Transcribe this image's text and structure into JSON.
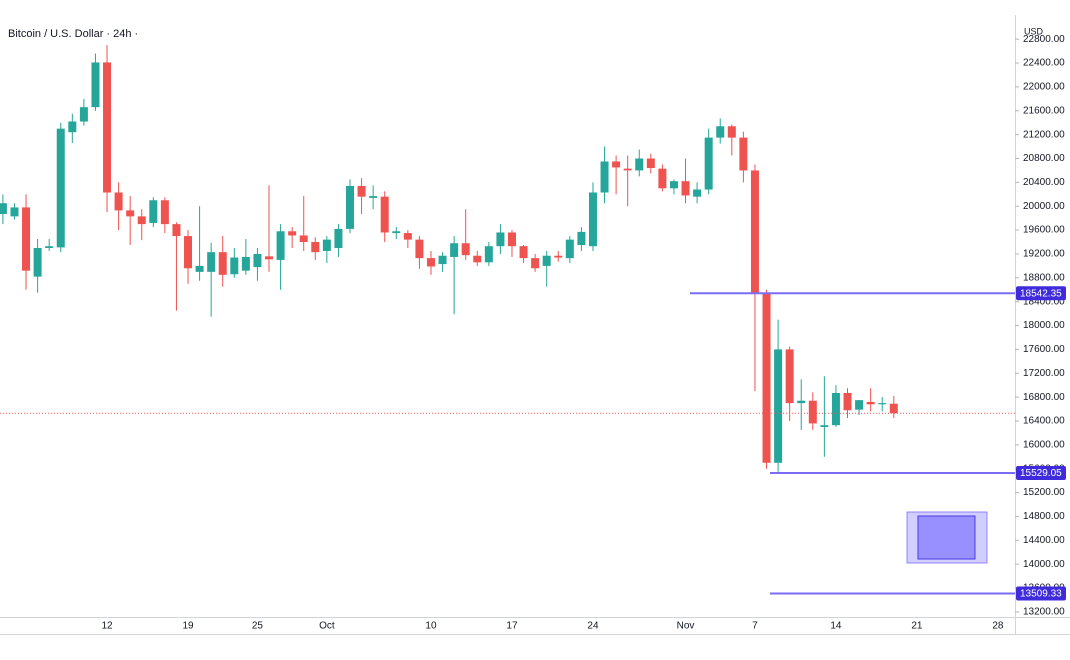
{
  "chart_data": {
    "type": "candlestick",
    "title": "Bitcoin / U.S. Dollar · 24h ·",
    "currency": "USD",
    "categories": [
      null,
      null,
      null,
      null,
      null,
      null,
      null,
      null,
      null,
      "12",
      null,
      null,
      null,
      null,
      null,
      null,
      "19",
      null,
      null,
      null,
      null,
      null,
      "25",
      null,
      null,
      null,
      null,
      null,
      "Oct",
      null,
      null,
      null,
      null,
      null,
      null,
      null,
      null,
      "10",
      null,
      null,
      null,
      null,
      null,
      null,
      "17",
      null,
      null,
      null,
      null,
      null,
      null,
      "24",
      null,
      null,
      null,
      null,
      null,
      null,
      null,
      "Nov",
      null,
      null,
      null,
      null,
      null,
      "7",
      null,
      null,
      null,
      null,
      null,
      null,
      "14",
      null,
      null,
      null,
      null,
      null,
      null,
      "21",
      null,
      null,
      null,
      null,
      null,
      null,
      "28",
      null
    ],
    "open": [
      19870,
      19830,
      19980,
      18820,
      19300,
      19310,
      21240,
      21420,
      21660,
      22410,
      20230,
      19930,
      19830,
      19720,
      20100,
      19700,
      19500,
      18900,
      18900,
      19230,
      18860,
      18920,
      18980,
      19160,
      19100,
      19580,
      19510,
      19400,
      19250,
      19300,
      19620,
      20340,
      20140,
      20160,
      19550,
      19550,
      19440,
      19130,
      19030,
      19150,
      19380,
      19170,
      19060,
      19330,
      19560,
      19330,
      19130,
      19000,
      19170,
      19130,
      19350,
      19330,
      20230,
      20750,
      20630,
      20600,
      20800,
      20630,
      20300,
      20420,
      20160,
      20280,
      21150,
      21340,
      21150,
      20600,
      18550,
      15700,
      17600,
      16700,
      16740,
      16300,
      16330,
      16870,
      16590,
      16720,
      16680,
      16690,
      null,
      null,
      null,
      null,
      null,
      null,
      null,
      null,
      null,
      null
    ],
    "high": [
      20200,
      20050,
      20200,
      19450,
      19450,
      21400,
      21550,
      21800,
      22560,
      22700,
      20400,
      20170,
      19950,
      20150,
      20150,
      19730,
      19600,
      20000,
      19390,
      19500,
      19300,
      19450,
      19300,
      20350,
      19700,
      19650,
      20170,
      19480,
      19500,
      19700,
      20450,
      20470,
      20350,
      20250,
      19650,
      19600,
      19500,
      19250,
      19230,
      19500,
      19950,
      19250,
      19400,
      19700,
      19600,
      19350,
      19200,
      19250,
      19250,
      19500,
      19650,
      20400,
      21000,
      20850,
      20850,
      20950,
      20880,
      20700,
      20450,
      20800,
      20400,
      21300,
      21470,
      21370,
      21250,
      20700,
      18600,
      18100,
      17650,
      17100,
      16880,
      17150,
      17000,
      16950,
      16750,
      16950,
      16800,
      16820,
      null,
      null,
      null,
      null,
      null,
      null,
      null,
      null,
      null,
      null
    ],
    "low": [
      19700,
      19780,
      18600,
      18550,
      19250,
      19230,
      21060,
      21350,
      21600,
      19900,
      19600,
      19350,
      19430,
      19650,
      19550,
      18250,
      18700,
      18750,
      18150,
      18650,
      18800,
      18850,
      18750,
      18900,
      18600,
      19300,
      19250,
      19100,
      19050,
      19150,
      19550,
      19870,
      19950,
      19400,
      19450,
      19300,
      18950,
      18850,
      18900,
      18190,
      19100,
      19000,
      19000,
      19200,
      19150,
      19050,
      18900,
      18650,
      19070,
      19050,
      19250,
      19250,
      20050,
      20200,
      20000,
      20500,
      20550,
      20250,
      20200,
      20050,
      20050,
      20200,
      21050,
      20850,
      20400,
      16900,
      15600,
      15550,
      16400,
      16250,
      16250,
      15800,
      16300,
      16450,
      16500,
      16560,
      16560,
      16450,
      null,
      null,
      null,
      null,
      null,
      null,
      null,
      null,
      null,
      null
    ],
    "close": [
      20050,
      19980,
      18920,
      19300,
      19330,
      21300,
      21420,
      21660,
      22410,
      20230,
      19930,
      19830,
      19700,
      20100,
      19700,
      19500,
      18960,
      19000,
      19230,
      18850,
      19140,
      19150,
      19200,
      19110,
      19580,
      19510,
      19400,
      19230,
      19440,
      19620,
      20340,
      20160,
      20170,
      19560,
      19580,
      19440,
      19130,
      18990,
      19170,
      19380,
      19180,
      19060,
      19330,
      19560,
      19330,
      19130,
      18960,
      19170,
      19140,
      19440,
      19570,
      20230,
      20750,
      20650,
      20600,
      20800,
      20640,
      20300,
      20420,
      20180,
      20280,
      21150,
      21340,
      21150,
      20600,
      18550,
      15700,
      17600,
      16700,
      16740,
      16360,
      16330,
      16870,
      16580,
      16750,
      16680,
      16700,
      16530,
      null,
      null,
      null,
      null,
      null,
      null,
      null,
      null,
      null,
      null
    ],
    "up_color": "#26a69a",
    "down_color": "#ef5350",
    "ylim": [
      13115,
      23205
    ],
    "yticks": [
      {
        "value": 13200,
        "label": "13200.00"
      },
      {
        "value": 13600,
        "label": "13600.00"
      },
      {
        "value": 14000,
        "label": "14000.00"
      },
      {
        "value": 14400,
        "label": "14400.00"
      },
      {
        "value": 14800,
        "label": "14800.00"
      },
      {
        "value": 15200,
        "label": "15200.00"
      },
      {
        "value": 15600,
        "label": "15600.00"
      },
      {
        "value": 16000,
        "label": "16000.00"
      },
      {
        "value": 16400,
        "label": "16400.00"
      },
      {
        "value": 16800,
        "label": "16800.00"
      },
      {
        "value": 17200,
        "label": "17200.00"
      },
      {
        "value": 17600,
        "label": "17600.00"
      },
      {
        "value": 18000,
        "label": "18000.00"
      },
      {
        "value": 18400,
        "label": "18400.00"
      },
      {
        "value": 18800,
        "label": "18800.00"
      },
      {
        "value": 19200,
        "label": "19200.00"
      },
      {
        "value": 19600,
        "label": "19600.00"
      },
      {
        "value": 20000,
        "label": "20000.00"
      },
      {
        "value": 20400,
        "label": "20400.00"
      },
      {
        "value": 20800,
        "label": "20800.00"
      },
      {
        "value": 21200,
        "label": "21200.00"
      },
      {
        "value": 21600,
        "label": "21600.00"
      },
      {
        "value": 22000,
        "label": "22000.00"
      },
      {
        "value": 22400,
        "label": "22400.00"
      },
      {
        "value": 22800,
        "label": "22800.00"
      }
    ],
    "price_lines": [
      18542.35,
      15529.05,
      13509.33
    ],
    "price_line_color": "#7b6cf6",
    "price_label_color": "#3f2bdc",
    "zone": [
      14020,
      14875
    ],
    "zone_color": "#6a5cff"
  }
}
